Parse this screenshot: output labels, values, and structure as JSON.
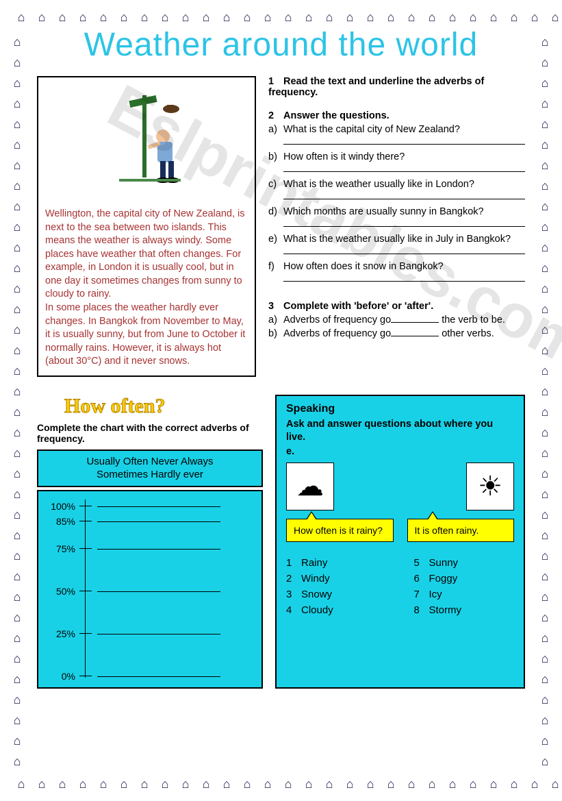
{
  "title": "Weather around the world",
  "story": "Wellington, the capital city of New Zealand, is next to the sea between two islands. This means the weather is always windy. Some places have weather that often changes. For example, in London it is usually cool, but in one day it sometimes changes from sunny to cloudy to rainy.\nIn some places the weather hardly ever changes. In Bangkok from November to May, it is usually sunny, but from June to October it normally rains. However, it is always hot (about 30°C) and it never snows.",
  "section1": {
    "num": "1",
    "text": "Read the text and underline the adverbs of frequency."
  },
  "section2": {
    "num": "2",
    "text": "Answer the questions.",
    "items": [
      {
        "l": "a)",
        "q": "What is the capital city of New Zealand?"
      },
      {
        "l": "b)",
        "q": "How often is it windy there?"
      },
      {
        "l": "c)",
        "q": "What is the weather usually like in London?"
      },
      {
        "l": "d)",
        "q": "Which months are usually sunny in Bangkok?"
      },
      {
        "l": "e)",
        "q": "What is the weather usually like in July in Bangkok?"
      },
      {
        "l": "f)",
        "q": "How often does it snow in Bangkok?"
      }
    ]
  },
  "section3": {
    "num": "3",
    "text": "Complete with 'before' or 'after'.",
    "items": [
      {
        "l": "a)",
        "pre": "Adverbs of frequency go",
        "post": " the verb to be."
      },
      {
        "l": "b)",
        "pre": "Adverbs of frequency go",
        "post": " other verbs."
      }
    ]
  },
  "howOften": {
    "title": "How often?",
    "instr": "Complete the chart with the correct adverbs of frequency.",
    "bank_line1": "Usually   Often   Never   Always",
    "bank_line2": "Sometimes   Hardly ever",
    "percents": [
      "100%",
      "85%",
      "75%",
      "50%",
      "25%",
      "0%"
    ],
    "percent_pos": [
      14,
      36,
      76,
      138,
      200,
      262
    ]
  },
  "speaking": {
    "title": "Speaking",
    "instr": "Ask and answer questions about where you live.",
    "eg": "e.",
    "q_bubble": "How often is it rainy?",
    "a_bubble": "It is often rainy.",
    "left": [
      {
        "n": "1",
        "w": "Rainy"
      },
      {
        "n": "2",
        "w": "Windy"
      },
      {
        "n": "3",
        "w": "Snowy"
      },
      {
        "n": "4",
        "w": "Cloudy"
      }
    ],
    "right": [
      {
        "n": "5",
        "w": "Sunny"
      },
      {
        "n": "6",
        "w": "Foggy"
      },
      {
        "n": "7",
        "w": "Icy"
      },
      {
        "n": "8",
        "w": "Stormy"
      }
    ]
  },
  "watermark": "Eslprintables.com",
  "border_glyph": "⌂",
  "colors": {
    "title": "#2bc4e6",
    "story_text": "#a83232",
    "cyan_panel": "#19d1e6",
    "yellow": "#ffff00",
    "how_often_title": "#ffcc00"
  }
}
